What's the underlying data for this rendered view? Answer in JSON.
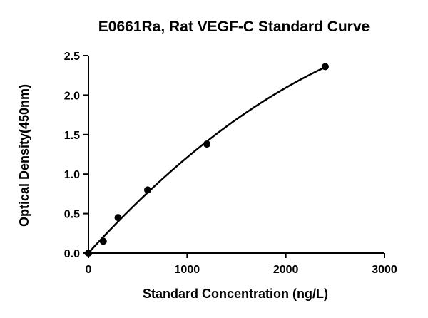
{
  "chart_data": {
    "type": "scatter",
    "title": "E0661Ra, Rat VEGF-C Standard Curve",
    "xlabel": "Standard Concentration (ng/L)",
    "ylabel": "Optical Density(450nm)",
    "xlim": [
      0,
      3000
    ],
    "ylim": [
      0,
      2.5
    ],
    "xticks": [
      0,
      1000,
      2000,
      3000
    ],
    "xtick_labels": [
      "0",
      "1000",
      "2000",
      "3000"
    ],
    "yticks": [
      0,
      0.5,
      1.0,
      1.5,
      2.0,
      2.5
    ],
    "ytick_labels": [
      "0.0",
      "0.5",
      "1.0",
      "1.5",
      "2.0",
      "2.5"
    ],
    "grid": false,
    "legend": "none",
    "series": [
      {
        "points": [
          {
            "x": 0,
            "y": 0.0
          },
          {
            "x": 150,
            "y": 0.15
          },
          {
            "x": 300,
            "y": 0.45
          },
          {
            "x": 600,
            "y": 0.8
          },
          {
            "x": 1200,
            "y": 1.38
          },
          {
            "x": 2400,
            "y": 2.36
          }
        ],
        "fit_curve": true,
        "fit_x_range": [
          0,
          2400
        ],
        "color": "#000000"
      }
    ]
  }
}
